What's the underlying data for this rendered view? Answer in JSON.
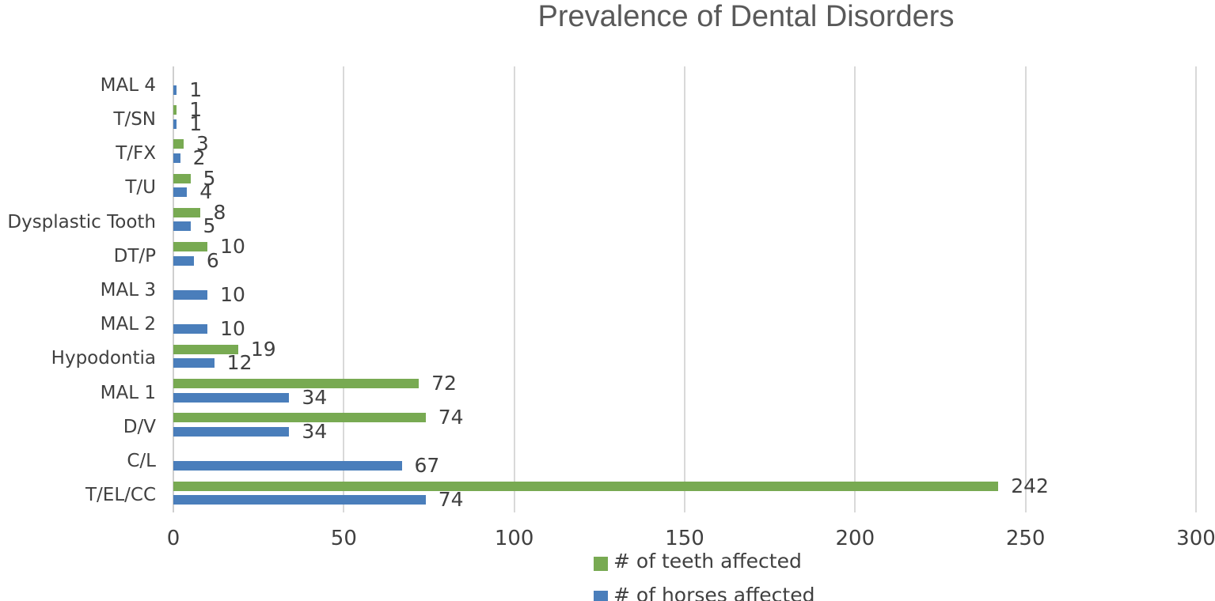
{
  "colors": {
    "teeth": "#78aa52",
    "horses": "#4a7ebb",
    "gridline": "#d9d9d9",
    "axis_line": "#cfcfcf",
    "label_text": "#404040",
    "title_text": "#595959"
  },
  "legend": {
    "items": [
      {
        "label": "# of teeth affected",
        "series": "teeth"
      },
      {
        "label": "# of horses affected",
        "series": "horses"
      }
    ]
  },
  "chart_data": {
    "type": "bar",
    "orientation": "horizontal",
    "title": "Prevalence of Dental Disorders",
    "categories": [
      "MAL 4",
      "T/SN",
      "T/FX",
      "T/U",
      "Dysplastic Tooth",
      "DT/P",
      "MAL 3",
      "MAL 2",
      "Hypodontia",
      "MAL 1",
      "D/V",
      "C/L",
      "T/EL/CC"
    ],
    "series": [
      {
        "name": "# of teeth affected",
        "color_key": "teeth",
        "values": [
          null,
          1,
          3,
          5,
          8,
          10,
          null,
          null,
          19,
          72,
          74,
          null,
          242
        ]
      },
      {
        "name": "# of horses affected",
        "color_key": "horses",
        "values": [
          1,
          1,
          2,
          4,
          5,
          6,
          10,
          10,
          12,
          34,
          34,
          67,
          74
        ]
      }
    ],
    "xlim": [
      0,
      300
    ],
    "xticks": [
      0,
      50,
      100,
      150,
      200,
      250,
      300
    ],
    "grid": "vertical",
    "legend_position": "bottom",
    "data_labels": true
  }
}
